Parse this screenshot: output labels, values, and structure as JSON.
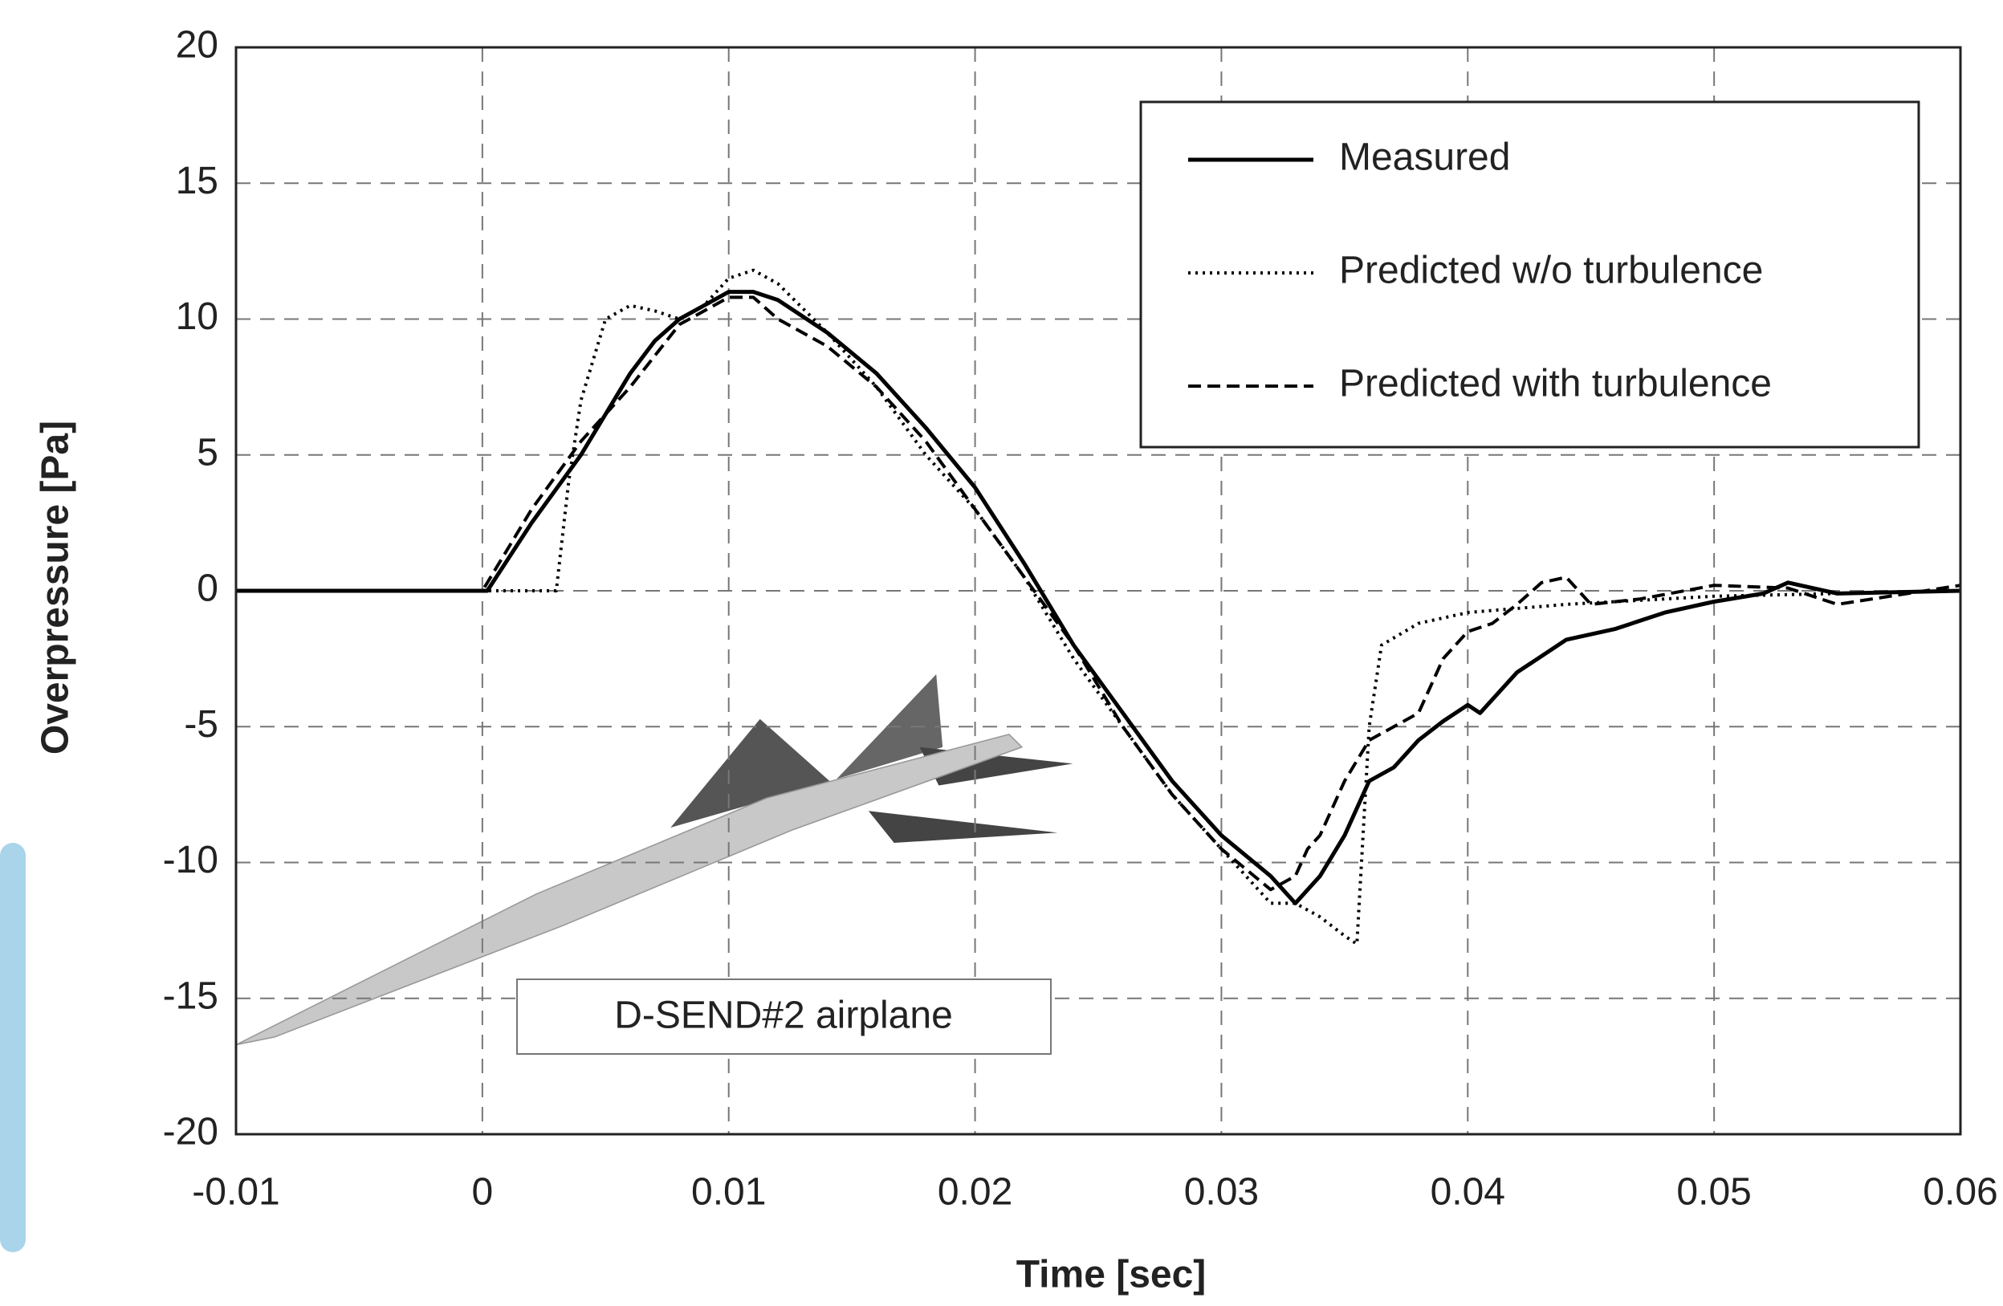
{
  "chart_data": {
    "type": "line",
    "x_label": "Time [sec]",
    "y_label": "Overpressure [Pa]",
    "annotation": "D-SEND#2 airplane",
    "xlim": [
      -0.01,
      0.06
    ],
    "xticks": [
      -0.01,
      0,
      0.01,
      0.02,
      0.03,
      0.04,
      0.05,
      0.06
    ],
    "ylim": [
      -20,
      20
    ],
    "yticks": [
      -20,
      -15,
      -10,
      -5,
      0,
      5,
      10,
      15,
      20
    ],
    "grid": true,
    "legend": "upper right",
    "series": [
      {
        "name": "Measured",
        "color": "#000000",
        "dash": "solid",
        "x": [
          -0.01,
          0,
          0.0002,
          0.002,
          0.004,
          0.005,
          0.006,
          0.007,
          0.008,
          0.009,
          0.01,
          0.011,
          0.012,
          0.014,
          0.016,
          0.018,
          0.02,
          0.022,
          0.024,
          0.026,
          0.028,
          0.03,
          0.032,
          0.033,
          0.034,
          0.035,
          0.036,
          0.037,
          0.038,
          0.039,
          0.04,
          0.0405,
          0.042,
          0.044,
          0.046,
          0.048,
          0.05,
          0.052,
          0.053,
          0.055,
          0.06
        ],
        "values": [
          0,
          0,
          0,
          2.5,
          5,
          6.5,
          8,
          9.2,
          10,
          10.5,
          11,
          11,
          10.7,
          9.5,
          8,
          6,
          3.8,
          1,
          -2,
          -4.5,
          -7,
          -9,
          -10.5,
          -11.5,
          -10.5,
          -9,
          -7,
          -6.5,
          -5.5,
          -4.8,
          -4.2,
          -4.5,
          -3,
          -1.8,
          -1.4,
          -0.8,
          -0.4,
          -0.1,
          0.3,
          -0.1,
          0
        ]
      },
      {
        "name": "Predicted w/o turbulence",
        "color": "#000000",
        "dash": "dotted",
        "x": [
          -0.01,
          0.003,
          0.0035,
          0.004,
          0.005,
          0.006,
          0.007,
          0.008,
          0.009,
          0.01,
          0.011,
          0.012,
          0.014,
          0.016,
          0.018,
          0.02,
          0.022,
          0.024,
          0.026,
          0.028,
          0.03,
          0.032,
          0.033,
          0.034,
          0.035,
          0.0355,
          0.036,
          0.0365,
          0.038,
          0.04,
          0.044,
          0.05,
          0.06
        ],
        "values": [
          0,
          0,
          4,
          7,
          10,
          10.5,
          10.3,
          10,
          10.5,
          11.5,
          11.8,
          11.3,
          9.5,
          7.5,
          5,
          3,
          0.5,
          -2.5,
          -5,
          -7.5,
          -9.5,
          -11.5,
          -11.5,
          -12,
          -12.7,
          -13,
          -5,
          -2,
          -1.2,
          -0.8,
          -0.5,
          -0.2,
          0
        ]
      },
      {
        "name": "Predicted with turbulence",
        "color": "#000000",
        "dash": "dashed",
        "x": [
          -0.01,
          0,
          0.002,
          0.004,
          0.006,
          0.008,
          0.01,
          0.011,
          0.012,
          0.014,
          0.016,
          0.018,
          0.02,
          0.022,
          0.024,
          0.026,
          0.028,
          0.03,
          0.032,
          0.033,
          0.0335,
          0.034,
          0.035,
          0.036,
          0.037,
          0.038,
          0.039,
          0.04,
          0.041,
          0.042,
          0.043,
          0.044,
          0.045,
          0.047,
          0.05,
          0.053,
          0.055,
          0.06
        ],
        "values": [
          0,
          0,
          3,
          5.5,
          7.5,
          9.8,
          10.8,
          10.8,
          10,
          9,
          7.5,
          5.5,
          3,
          0.5,
          -2,
          -5,
          -7.5,
          -9.5,
          -11,
          -10.5,
          -9.5,
          -9,
          -7,
          -5.5,
          -5,
          -4.5,
          -2.5,
          -1.5,
          -1.2,
          -0.5,
          0.3,
          0.5,
          -0.5,
          -0.3,
          0.2,
          0.1,
          -0.5,
          0.2
        ]
      }
    ]
  }
}
